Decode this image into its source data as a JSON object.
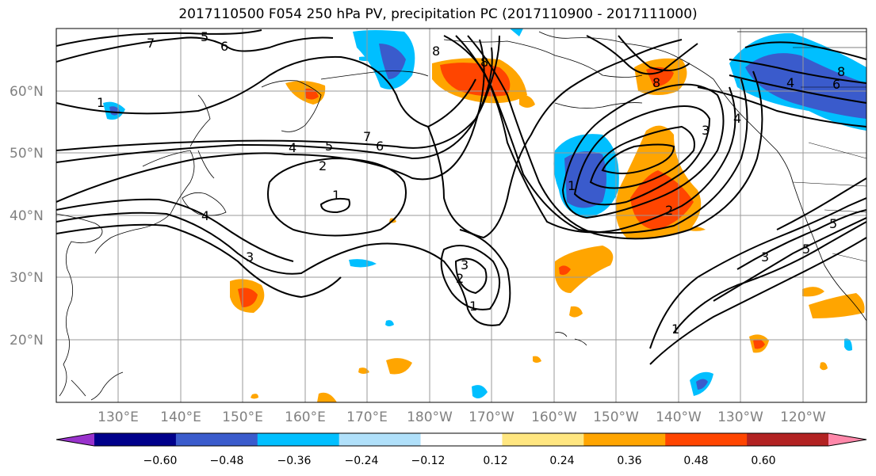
{
  "title": "2017110500 F054 250 hPa PV, precipitation PC (2017110900 - 2017111000)",
  "map": {
    "lat_labels": [
      "60°N",
      "50°N",
      "40°N",
      "30°N",
      "20°N"
    ],
    "lon_labels": [
      "130°E",
      "140°E",
      "150°E",
      "160°E",
      "170°E",
      "180°W",
      "170°W",
      "160°W",
      "150°W",
      "140°W",
      "130°W",
      "120°W"
    ],
    "contour_labels": [
      "5",
      "6",
      "7",
      "7",
      "4",
      "5",
      "6",
      "2",
      "1",
      "4",
      "3",
      "3",
      "2",
      "1",
      "1",
      "1",
      "2",
      "8",
      "8",
      "8",
      "4",
      "6",
      "8",
      "3",
      "5",
      "5",
      "3",
      "1",
      "4"
    ]
  },
  "colorbar": {
    "ticks": [
      "−0.60",
      "−0.48",
      "−0.36",
      "−0.24",
      "−0.12",
      "0.12",
      "0.24",
      "0.36",
      "0.48",
      "0.60"
    ],
    "colors": [
      "#9932cc",
      "#00008b",
      "#3a5bcc",
      "#00bfff",
      "#b0e0fa",
      "#ffffff",
      "#ffe680",
      "#ffa500",
      "#ff4500",
      "#b22222",
      "#ff88aa"
    ]
  }
}
